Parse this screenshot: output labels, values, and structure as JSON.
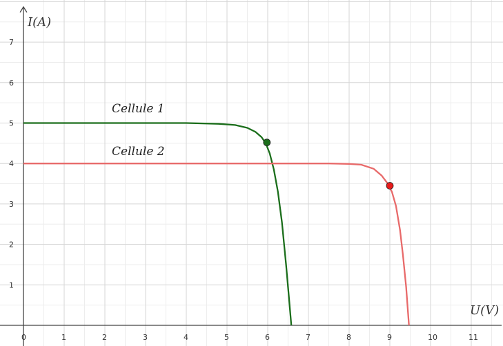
{
  "chart_data": {
    "type": "line",
    "title": "",
    "xlabel": "U(V)",
    "ylabel": "I(A)",
    "xlim": [
      0,
      11.9
    ],
    "ylim": [
      0,
      7.8
    ],
    "grid": true,
    "x_ticks": [
      "0",
      "1",
      "2",
      "3",
      "4",
      "5",
      "6",
      "7",
      "8",
      "9",
      "10",
      "11"
    ],
    "y_ticks": [
      "1",
      "2",
      "3",
      "4",
      "5",
      "6",
      "7"
    ],
    "series": [
      {
        "name": "Cellule 1",
        "color": "#1b6e1b",
        "x": [
          0,
          2,
          4,
          4.8,
          5.2,
          5.5,
          5.7,
          5.85,
          5.95,
          6.05,
          6.15,
          6.25,
          6.35,
          6.45,
          6.52,
          6.58
        ],
        "y": [
          5.0,
          5.0,
          5.0,
          4.98,
          4.95,
          4.88,
          4.78,
          4.65,
          4.5,
          4.25,
          3.85,
          3.3,
          2.55,
          1.5,
          0.7,
          0.0
        ],
        "marker": {
          "x": 5.98,
          "y": 4.52
        }
      },
      {
        "name": "Cellule 2",
        "color": "#e86a6a",
        "x": [
          0,
          4,
          7.5,
          8.0,
          8.3,
          8.6,
          8.8,
          8.95,
          9.05,
          9.15,
          9.25,
          9.32,
          9.4,
          9.47
        ],
        "y": [
          4.0,
          4.0,
          4.0,
          3.99,
          3.97,
          3.87,
          3.7,
          3.5,
          3.3,
          2.95,
          2.35,
          1.75,
          0.95,
          0.0
        ],
        "marker": {
          "x": 9.0,
          "y": 3.45
        }
      }
    ]
  }
}
